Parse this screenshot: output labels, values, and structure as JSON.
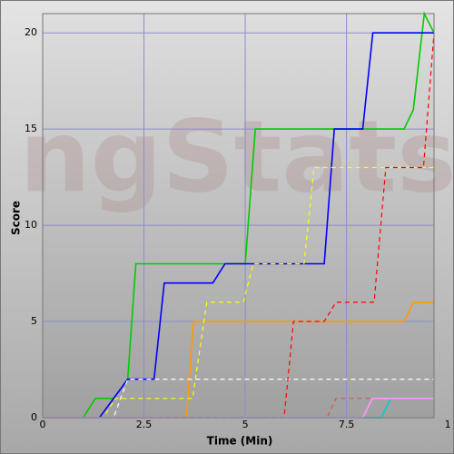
{
  "chart_data": {
    "type": "line",
    "watermark": "ngStats",
    "xlabel": "Time (Min)",
    "ylabel": "Score",
    "xlim": [
      0,
      9.66
    ],
    "ylim": [
      0,
      21
    ],
    "xticks": [
      0,
      2.5,
      5,
      7.5,
      {
        "value": 10,
        "label": "1"
      }
    ],
    "yticks": [
      0,
      5,
      10,
      15,
      20
    ],
    "grid": true,
    "grid_color": "#8c8ccc",
    "series": [
      {
        "color": "#00cc00",
        "dash": false,
        "x": [
          0,
          1.0,
          1.3,
          1.75,
          2.1,
          2.3,
          5.0,
          5.25,
          8.92,
          9.15,
          9.42,
          9.66
        ],
        "values": [
          0,
          0,
          1,
          1,
          2,
          8,
          8,
          15,
          15,
          16,
          21,
          20
        ]
      },
      {
        "color": "#0000ff",
        "dash": false,
        "x": [
          0,
          1.4,
          2.1,
          2.75,
          3.0,
          4.2,
          4.5,
          6.95,
          7.2,
          7.9,
          8.15,
          9.6,
          9.66
        ],
        "values": [
          0,
          0,
          2,
          2,
          7,
          7,
          8,
          8,
          15,
          15,
          20,
          20,
          20
        ]
      },
      {
        "color": "#ff9900",
        "dash": false,
        "x": [
          0,
          3.55,
          3.72,
          8.92,
          9.15,
          9.66
        ],
        "values": [
          0,
          0,
          5,
          5,
          6,
          6
        ]
      },
      {
        "color": "#ffffff",
        "dash": true,
        "x": [
          0,
          1.75,
          2.1,
          9.66
        ],
        "values": [
          0,
          0,
          2,
          2
        ]
      },
      {
        "color": "#ffff00",
        "dash": true,
        "x": [
          0,
          1.5,
          1.65,
          1.8,
          3.7,
          4.05,
          4.95,
          5.2,
          6.45,
          6.7,
          9.66
        ],
        "values": [
          0,
          0,
          0.5,
          1,
          1,
          6,
          6,
          8,
          8,
          13,
          13
        ]
      },
      {
        "color": "#ff0000",
        "dash": true,
        "x": [
          0,
          5.96,
          6.19,
          6.95,
          7.24,
          8.18,
          8.47,
          9.4,
          9.66
        ],
        "values": [
          0,
          0,
          5,
          5,
          6,
          6,
          13,
          13,
          20
        ]
      },
      {
        "color": "#cc5555",
        "dash": true,
        "x": [
          0,
          7.02,
          7.24,
          9.66
        ],
        "values": [
          0,
          0,
          1,
          1
        ]
      },
      {
        "color": "#00cccc",
        "dash": false,
        "x": [
          0,
          8.36,
          8.59,
          9.66
        ],
        "values": [
          0,
          0,
          1,
          1
        ]
      },
      {
        "color": "#ff99ff",
        "dash": false,
        "x": [
          0,
          7.9,
          8.14,
          9.66
        ],
        "values": [
          0,
          0,
          1,
          1
        ]
      }
    ]
  }
}
